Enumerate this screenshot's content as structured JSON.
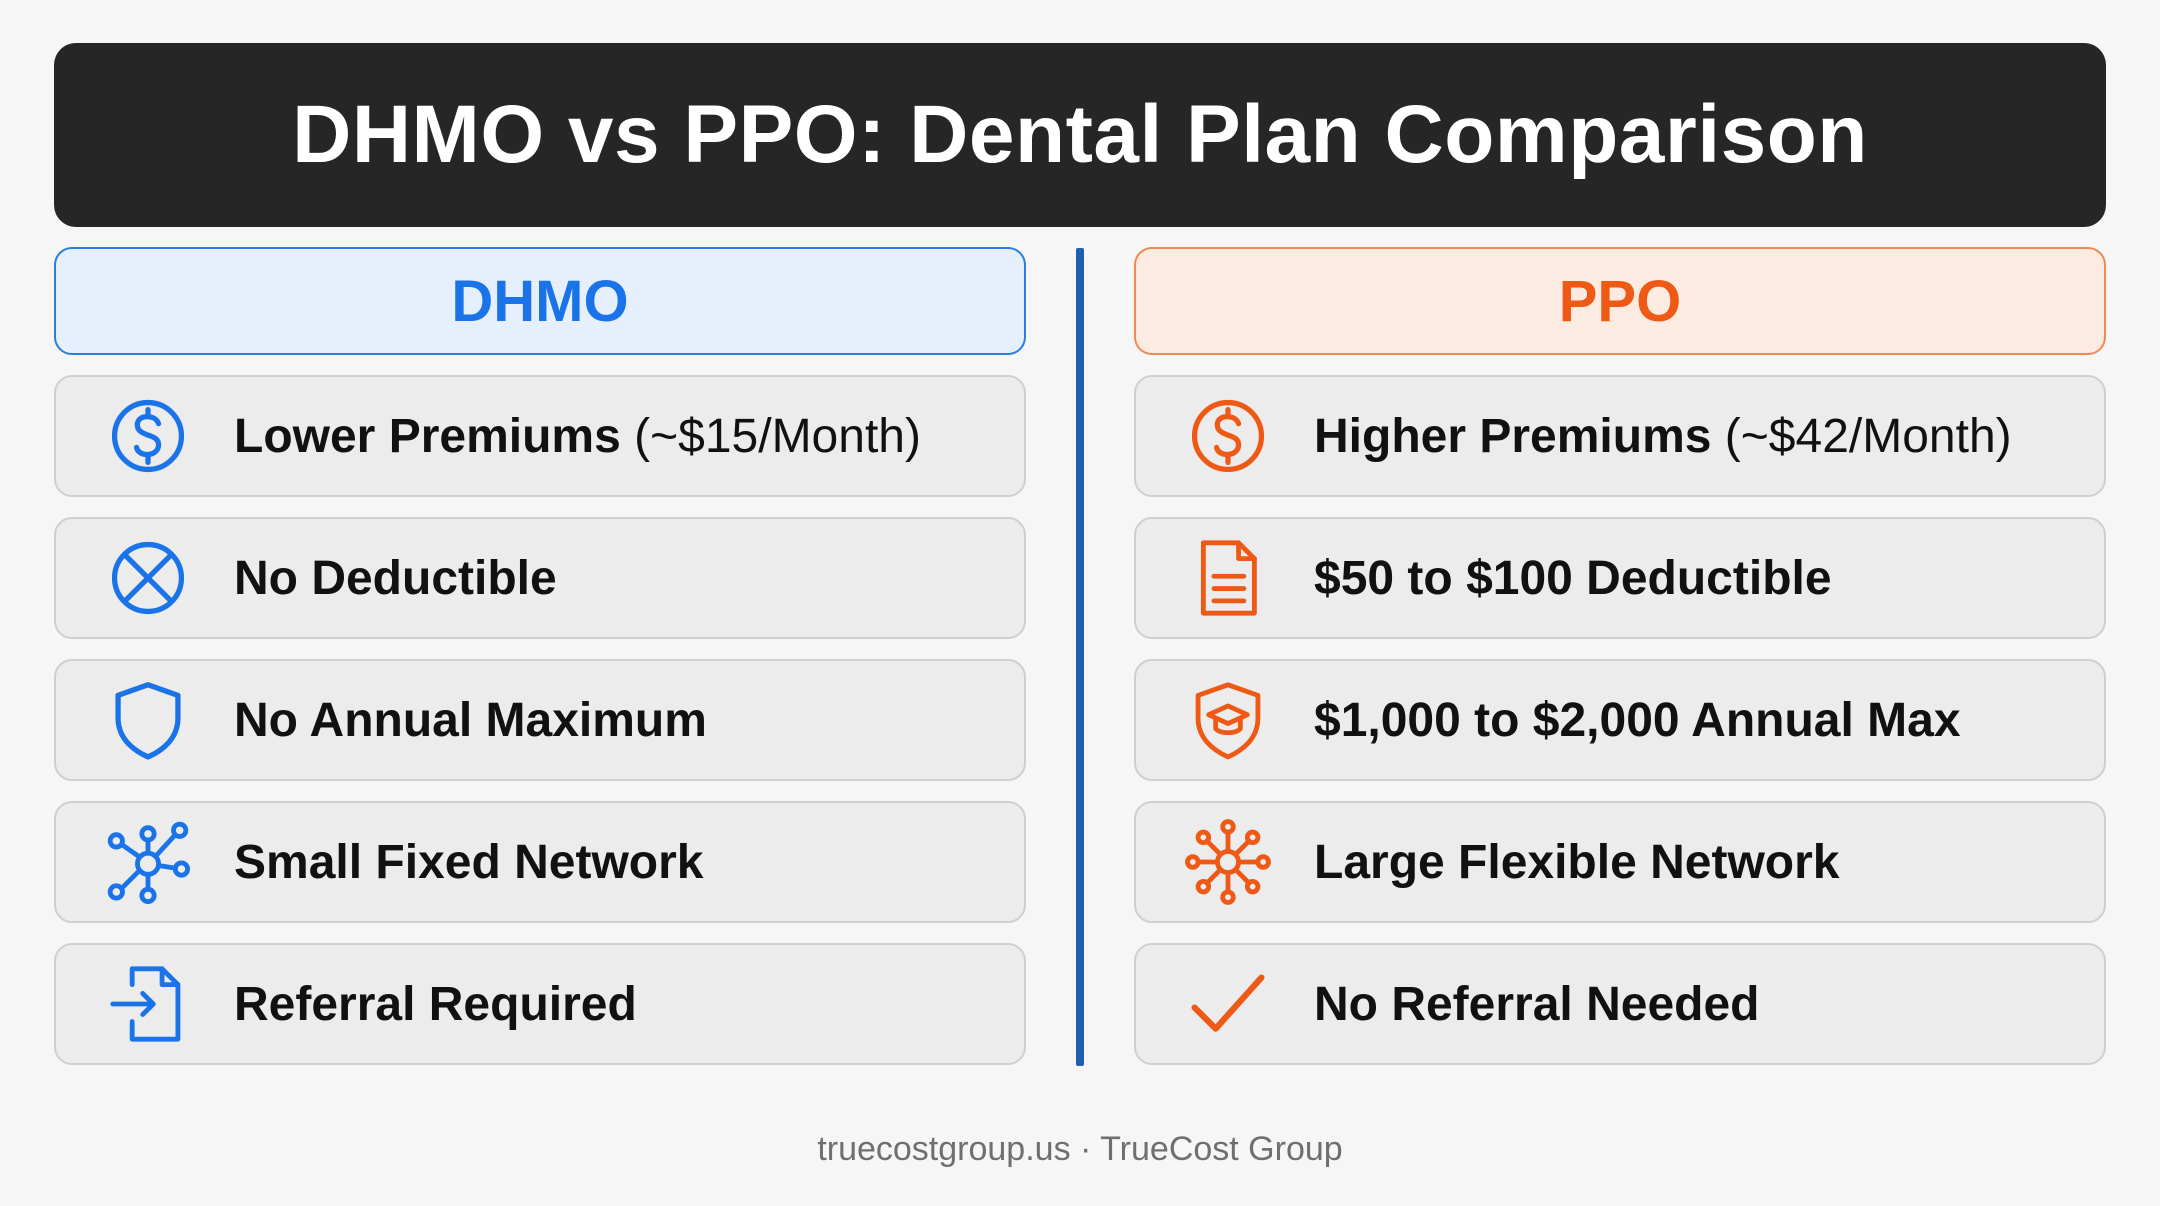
{
  "title": "DHMO vs PPO: Dental Plan Comparison",
  "left": {
    "header": "DHMO",
    "accent": "#1a73e8",
    "rows": [
      {
        "icon": "dollar-circle-icon",
        "bold": "Lower Premiums",
        "light": " (~$15/Month)"
      },
      {
        "icon": "x-circle-icon",
        "bold": "No Deductible",
        "light": ""
      },
      {
        "icon": "shield-icon",
        "bold": "No Annual Maximum",
        "light": ""
      },
      {
        "icon": "network-icon",
        "bold": "Small Fixed Network",
        "light": ""
      },
      {
        "icon": "referral-document-icon",
        "bold": "Referral Required",
        "light": ""
      }
    ]
  },
  "right": {
    "header": "PPO",
    "accent": "#ee5a16",
    "rows": [
      {
        "icon": "dollar-circle-icon",
        "bold": "Higher Premiums",
        "light": " (~$42/Month)"
      },
      {
        "icon": "document-icon",
        "bold": "$50 to $100 Deductible",
        "light": ""
      },
      {
        "icon": "graduation-shield-icon",
        "bold": "$1,000 to $2,000 Annual Max",
        "light": ""
      },
      {
        "icon": "hub-network-icon",
        "bold": "Large Flexible Network",
        "light": ""
      },
      {
        "icon": "checkmark-icon",
        "bold": "No Referral Needed",
        "light": ""
      }
    ]
  },
  "footer": "truecostgroup.us · TrueCost Group"
}
